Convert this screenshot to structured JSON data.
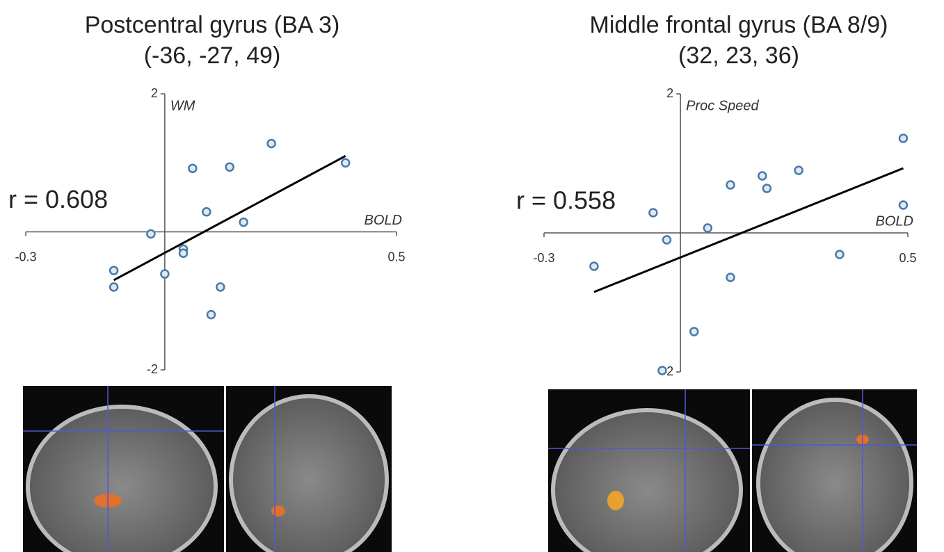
{
  "chart_data": [
    {
      "type": "scatter",
      "title": "Postcentral gyrus (BA 3)",
      "subtitle": "(-36, -27, 49)",
      "annotation": "r = 0.608",
      "x_label": "BOLD",
      "y_label": "WM",
      "xlim": [
        -0.3,
        0.5
      ],
      "ylim": [
        -2,
        2
      ],
      "xticks": [
        -0.3,
        0.5
      ],
      "yticks": [
        -2,
        2
      ],
      "grid": false,
      "series": [
        {
          "color": "#4a78a8",
          "x": [
            0.06,
            0.14,
            0.23,
            0.39,
            0.09,
            0.17,
            -0.03,
            0.04,
            0.04,
            -0.11,
            -0.11,
            0.0,
            0.12,
            0.1
          ],
          "values": [
            0.92,
            0.94,
            1.28,
            1.0,
            0.29,
            0.14,
            -0.03,
            -0.25,
            -0.31,
            -0.56,
            -0.8,
            -0.61,
            -0.8,
            -1.2
          ]
        }
      ],
      "trendline": {
        "x": [
          -0.11,
          0.39
        ],
        "y": [
          -0.7,
          1.1
        ]
      }
    },
    {
      "type": "scatter",
      "title": "Middle frontal gyrus (BA 8/9)",
      "subtitle": "(32, 23, 36)",
      "annotation": "r = 0.558",
      "x_label": "BOLD",
      "y_label": "Proc Speed",
      "xlim": [
        -0.3,
        0.5
      ],
      "ylim": [
        -2,
        2
      ],
      "xticks": [
        -0.3,
        0.5
      ],
      "yticks": [
        -2,
        2
      ],
      "grid": false,
      "series": [
        {
          "color": "#4a78a8",
          "x": [
            0.49,
            0.26,
            0.18,
            0.19,
            0.11,
            0.49,
            -0.06,
            0.06,
            -0.03,
            -0.19,
            0.35,
            0.11,
            0.03,
            -0.04
          ],
          "values": [
            1.36,
            0.9,
            0.82,
            0.64,
            0.69,
            0.4,
            0.29,
            0.07,
            -0.1,
            -0.48,
            -0.31,
            -0.64,
            -1.42,
            -1.98
          ]
        }
      ],
      "trendline": {
        "x": [
          -0.19,
          0.49
        ],
        "y": [
          -0.85,
          0.93
        ]
      }
    }
  ]
}
